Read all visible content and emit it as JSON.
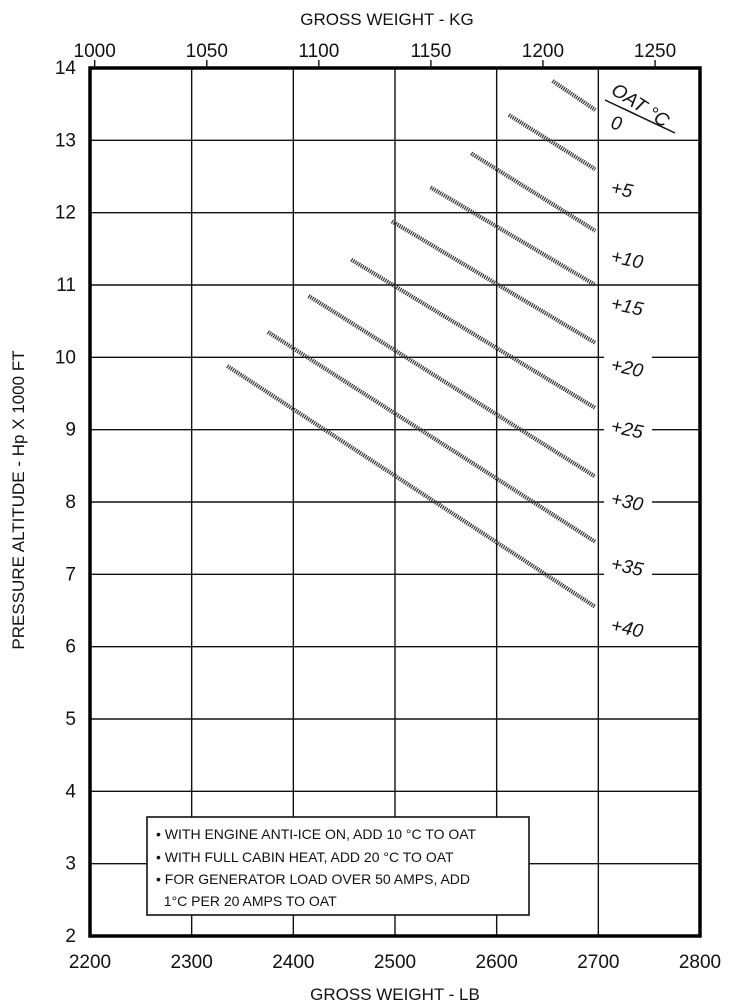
{
  "chart_data": {
    "type": "line",
    "top_axis_title": "GROSS WEIGHT - KG",
    "xlabel": "GROSS WEIGHT - LB",
    "ylabel": "PRESSURE ALTITUDE - Hp X 1000 FT",
    "xlim": [
      2200,
      2800
    ],
    "ylim": [
      2,
      14
    ],
    "x_ticks": [
      "2200",
      "2300",
      "2400",
      "2500",
      "2600",
      "2700",
      "2800"
    ],
    "y_ticks": [
      "2",
      "3",
      "4",
      "5",
      "6",
      "7",
      "8",
      "9",
      "10",
      "11",
      "12",
      "13",
      "14"
    ],
    "kg_ticks": [
      "1000",
      "1050",
      "1100",
      "1150",
      "1200",
      "1250"
    ],
    "kg_tick_values_lb": [
      2204.6,
      2314.9,
      2425.1,
      2535.3,
      2645.5,
      2755.8
    ],
    "legend_title": "OAT °C",
    "grid": true,
    "series": [
      {
        "name": "0",
        "x": [
          2655,
          2697
        ],
        "y": [
          13.82,
          13.42
        ]
      },
      {
        "name": "+5",
        "x": [
          2612,
          2697
        ],
        "y": [
          13.35,
          12.6
        ]
      },
      {
        "name": "+10",
        "x": [
          2575,
          2697
        ],
        "y": [
          12.82,
          11.75
        ]
      },
      {
        "name": "+15",
        "x": [
          2535,
          2697
        ],
        "y": [
          12.35,
          11.0
        ]
      },
      {
        "name": "+20",
        "x": [
          2497,
          2697
        ],
        "y": [
          11.88,
          10.2
        ]
      },
      {
        "name": "+25",
        "x": [
          2457,
          2697
        ],
        "y": [
          11.35,
          9.3
        ]
      },
      {
        "name": "+30",
        "x": [
          2415,
          2697
        ],
        "y": [
          10.85,
          8.35
        ]
      },
      {
        "name": "+35",
        "x": [
          2375,
          2697
        ],
        "y": [
          10.35,
          7.45
        ]
      },
      {
        "name": "+40",
        "x": [
          2335,
          2697
        ],
        "y": [
          9.88,
          6.55
        ]
      }
    ],
    "curve_labels": [
      {
        "text": "0",
        "y": 13.25
      },
      {
        "text": "+5",
        "y": 12.35
      },
      {
        "text": "+10",
        "y": 11.4
      },
      {
        "text": "+15",
        "y": 10.75
      },
      {
        "text": "+20",
        "y": 9.9
      },
      {
        "text": "+25",
        "y": 9.05
      },
      {
        "text": "+30",
        "y": 8.05
      },
      {
        "text": "+35",
        "y": 7.15
      },
      {
        "text": "+40",
        "y": 6.3
      }
    ],
    "notes": [
      "• WITH ENGINE ANTI-ICE ON, ADD 10 °C TO OAT",
      "• WITH FULL CABIN HEAT, ADD 20 °C TO OAT",
      "• FOR GENERATOR LOAD OVER 50 AMPS, ADD",
      "  1°C PER 20 AMPS TO OAT"
    ]
  }
}
